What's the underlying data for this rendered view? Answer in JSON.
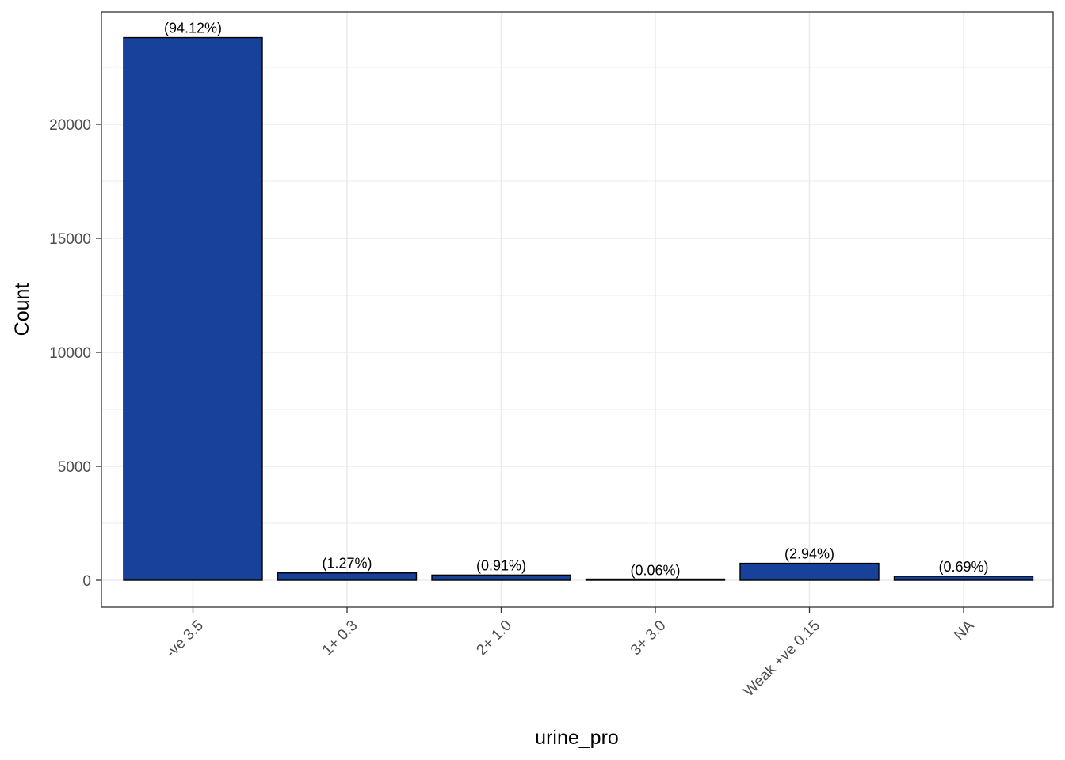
{
  "chart_data": {
    "type": "bar",
    "categories": [
      "-ve 3.5",
      "1+ 0.3",
      "2+ 1.0",
      "3+ 3.0",
      "Weak +ve 0.15",
      "NA"
    ],
    "values": [
      23800,
      322,
      230,
      15,
      744,
      175
    ],
    "data_labels": [
      "(94.12%)",
      "(1.27%)",
      "(0.91%)",
      "(0.06%)",
      "(2.94%)",
      "(0.69%)"
    ],
    "xlabel": "urine_pro",
    "ylabel": "Count",
    "ylim": [
      -1190,
      25000
    ],
    "yticks": [
      0,
      5000,
      10000,
      15000,
      20000
    ],
    "ytick_labels": [
      "0",
      "5000",
      "10000",
      "15000",
      "20000"
    ],
    "grid": true,
    "bar_color": "#17419A",
    "bar_edge_color": "#000000",
    "gridline_color": "#ebebeb",
    "x_tick_rotation": "45 degrees"
  }
}
